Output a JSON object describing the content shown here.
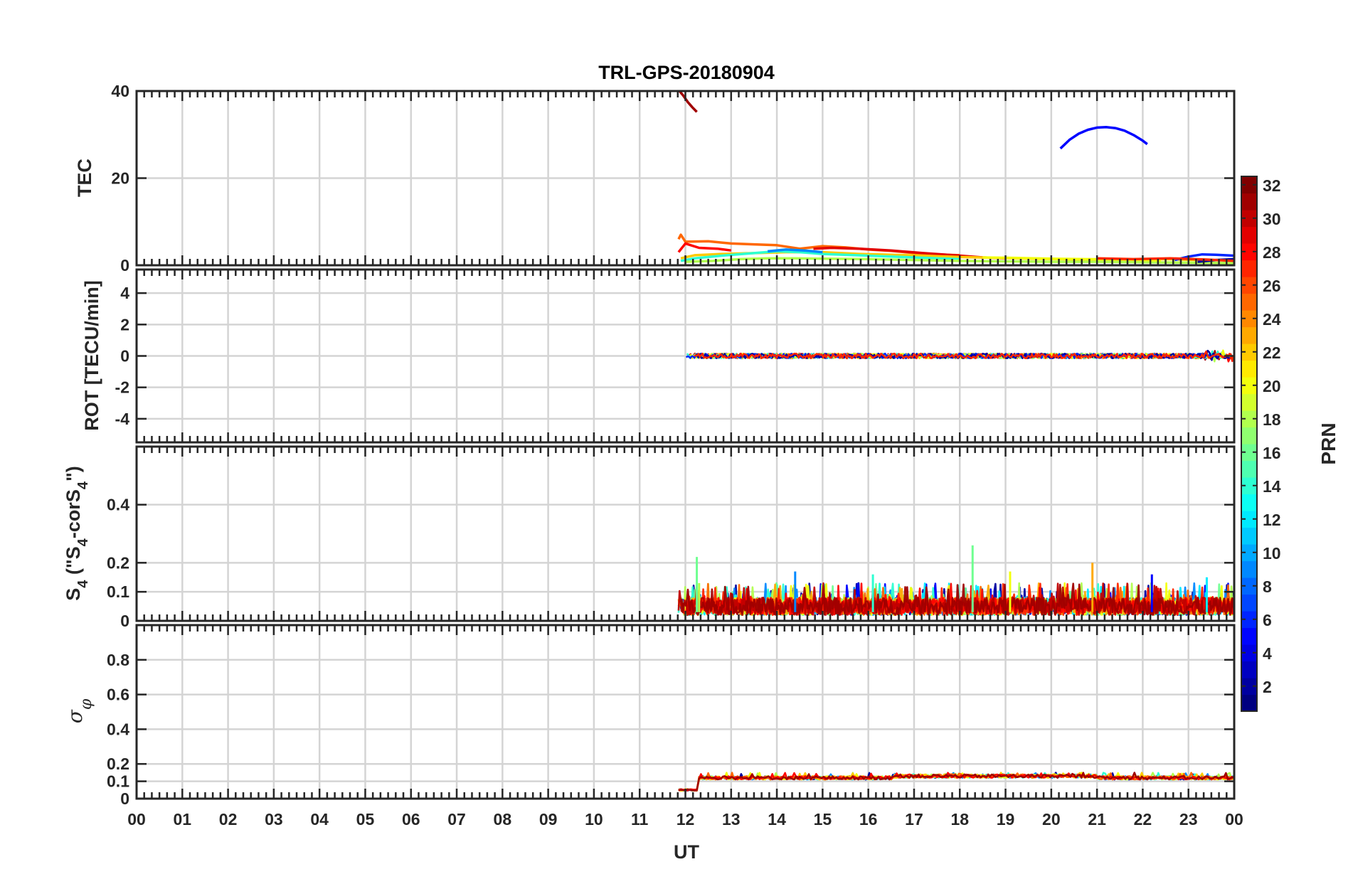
{
  "figure_title": "TRL-GPS-20180904",
  "xlabel": "UT",
  "x_tick_labels": [
    "00",
    "01",
    "02",
    "03",
    "04",
    "05",
    "06",
    "07",
    "08",
    "09",
    "10",
    "11",
    "12",
    "13",
    "14",
    "15",
    "16",
    "17",
    "18",
    "19",
    "20",
    "21",
    "22",
    "23",
    "00"
  ],
  "colorbar": {
    "label": "PRN",
    "range": [
      1,
      32
    ],
    "tick_labels": [
      "2",
      "4",
      "6",
      "8",
      "10",
      "12",
      "14",
      "16",
      "18",
      "20",
      "22",
      "24",
      "26",
      "28",
      "30",
      "32"
    ],
    "ticks": [
      2,
      4,
      6,
      8,
      10,
      12,
      14,
      16,
      18,
      20,
      22,
      24,
      26,
      28,
      30,
      32
    ],
    "colormap": "jet"
  },
  "chart_data": [
    {
      "panel": "tec",
      "type": "line",
      "title": "TRL-GPS-20180904",
      "ylabel": "TEC",
      "ylim": [
        0,
        40
      ],
      "xlim": [
        0,
        24
      ],
      "yticks": [
        0,
        20,
        40
      ],
      "ytick_labels": [
        "0",
        "20",
        "40"
      ],
      "grid": true,
      "series": [
        {
          "prn": 31,
          "name": "PRN 31",
          "x": [
            11.87,
            11.95,
            12.05,
            12.15,
            12.25
          ],
          "y": [
            40,
            39,
            37.5,
            36.3,
            35.2
          ]
        },
        {
          "prn": 5,
          "name": "PRN 5",
          "x": [
            20.2,
            20.4,
            20.6,
            20.8,
            21.0,
            21.2,
            21.4,
            21.6,
            21.8,
            22.0,
            22.1
          ],
          "y": [
            26.8,
            28.8,
            30.2,
            31.1,
            31.6,
            31.7,
            31.5,
            30.9,
            29.9,
            28.6,
            27.8
          ]
        },
        {
          "prn": 25,
          "name": "PRN 25",
          "x": [
            11.85,
            11.9,
            12.0,
            12.5,
            13.0,
            13.5,
            14.0,
            14.5,
            15.0,
            15.5,
            16.0,
            16.5,
            17.0,
            17.5,
            18.0
          ],
          "y": [
            6.0,
            7.0,
            5.4,
            5.5,
            5.0,
            4.8,
            4.6,
            3.8,
            4.4,
            4.1,
            3.6,
            3.3,
            2.8,
            2.5,
            2.3
          ]
        },
        {
          "prn": 28,
          "name": "PRN 28",
          "x": [
            11.85,
            12.0,
            12.3,
            12.7,
            13.0
          ],
          "y": [
            3.0,
            5.0,
            4.0,
            3.8,
            3.4
          ]
        },
        {
          "prn": 29,
          "name": "PRN 29",
          "x": [
            14.8,
            15.2,
            15.8,
            16.5,
            17.2,
            18.0,
            18.5,
            19.0
          ],
          "y": [
            3.8,
            4.0,
            3.8,
            3.4,
            2.8,
            2.2,
            1.8,
            1.6
          ]
        },
        {
          "prn": 22,
          "name": "PRN 22",
          "x": [
            11.9,
            12.2,
            12.8,
            13.5,
            14.2,
            15.0,
            15.8,
            16.5,
            17.2,
            18.0,
            18.8,
            19.5,
            20.2,
            21.0,
            21.8,
            22.5,
            23.2
          ],
          "y": [
            1.6,
            2.3,
            2.6,
            2.8,
            3.0,
            3.0,
            2.6,
            2.4,
            2.2,
            1.9,
            1.7,
            1.5,
            1.4,
            1.2,
            1.3,
            1.4,
            1.2
          ]
        },
        {
          "prn": 14,
          "name": "PRN 14",
          "x": [
            11.9,
            12.2,
            12.8,
            13.5,
            14.0,
            14.5,
            15.0,
            16.0,
            17.0,
            18.0
          ],
          "y": [
            1.0,
            1.6,
            2.2,
            2.8,
            3.2,
            3.0,
            2.6,
            2.2,
            1.8,
            1.4
          ]
        },
        {
          "prn": 9,
          "name": "PRN 9",
          "x": [
            13.8,
            14.2,
            14.6,
            15.0
          ],
          "y": [
            3.2,
            3.6,
            3.4,
            3.0
          ]
        },
        {
          "prn": 18,
          "name": "PRN 18",
          "x": [
            12.0,
            12.6,
            13.2,
            13.8,
            14.4,
            15.0,
            16.0,
            17.0,
            18.0,
            19.0,
            20.0,
            21.0,
            22.0,
            23.0,
            24.0
          ],
          "y": [
            0.8,
            1.0,
            1.4,
            1.6,
            1.6,
            1.5,
            1.4,
            1.2,
            1.0,
            0.9,
            0.8,
            0.8,
            0.7,
            0.6,
            0.5
          ]
        },
        {
          "prn": 20,
          "name": "PRN 20",
          "x": [
            18.5,
            19.2,
            20.0,
            20.8,
            21.6,
            22.4
          ],
          "y": [
            1.8,
            1.7,
            1.5,
            1.4,
            1.3,
            1.1
          ]
        },
        {
          "prn": 6,
          "name": "PRN 6",
          "x": [
            22.7,
            23.0,
            23.3,
            23.6,
            24.0
          ],
          "y": [
            1.2,
            2.0,
            2.5,
            2.4,
            2.2
          ]
        },
        {
          "prn": 2,
          "name": "PRN 2",
          "x": [
            23.2,
            23.6,
            24.0
          ],
          "y": [
            0.8,
            1.2,
            1.4
          ]
        },
        {
          "prn": 27,
          "name": "PRN 27",
          "x": [
            21.0,
            21.8,
            22.6,
            23.4,
            24.0
          ],
          "y": [
            1.6,
            1.4,
            1.6,
            1.3,
            1.0
          ]
        }
      ]
    },
    {
      "panel": "rot",
      "type": "line",
      "ylabel": "ROT [TECU/min]",
      "ylim": [
        -5.5,
        5.5
      ],
      "xlim": [
        0,
        24
      ],
      "yticks": [
        -4,
        -2,
        0,
        2,
        4
      ],
      "ytick_labels": [
        "-4",
        "-2",
        "0",
        "2",
        "4"
      ],
      "grid": true,
      "data_span_ut": [
        11.85,
        24.0
      ],
      "typical_value": 0,
      "typical_amplitude": 0.15,
      "max_abs_observed": 0.4
    },
    {
      "panel": "s4",
      "type": "line",
      "ylabel": "S4 (\"S4-corS4\")",
      "ylim": [
        0,
        0.6
      ],
      "xlim": [
        0,
        24
      ],
      "yticks": [
        0,
        0.1,
        0.2,
        0.4
      ],
      "ytick_labels": [
        "0",
        "0.1",
        "0.2",
        "0.4"
      ],
      "grid": true,
      "data_span_ut": [
        11.85,
        24.0
      ],
      "typical_range": [
        0.02,
        0.08
      ],
      "peaks": [
        {
          "x": 12.25,
          "y": 0.22,
          "prn": 16
        },
        {
          "x": 12.3,
          "y": 0.13,
          "prn": 18
        },
        {
          "x": 14.4,
          "y": 0.17,
          "prn": 9
        },
        {
          "x": 16.1,
          "y": 0.16,
          "prn": 14
        },
        {
          "x": 18.28,
          "y": 0.26,
          "prn": 16
        },
        {
          "x": 19.1,
          "y": 0.17,
          "prn": 20
        },
        {
          "x": 20.9,
          "y": 0.2,
          "prn": 23
        },
        {
          "x": 22.2,
          "y": 0.16,
          "prn": 5
        },
        {
          "x": 23.4,
          "y": 0.15,
          "prn": 12
        }
      ]
    },
    {
      "panel": "sigma_phi",
      "type": "line",
      "ylabel": "σφ",
      "ylim": [
        0,
        1
      ],
      "xlim": [
        0,
        24
      ],
      "yticks": [
        0,
        0.1,
        0.2,
        0.4,
        0.6,
        0.8
      ],
      "ytick_labels": [
        "0",
        "0.1",
        "0.2",
        "0.4",
        "0.6",
        "0.8"
      ],
      "grid": true,
      "data_span_ut": [
        11.85,
        24.0
      ],
      "initial_level": {
        "x": [
          11.85,
          12.3
        ],
        "y": 0.05
      },
      "typical_level": 0.12,
      "max_observed": 0.15
    }
  ]
}
